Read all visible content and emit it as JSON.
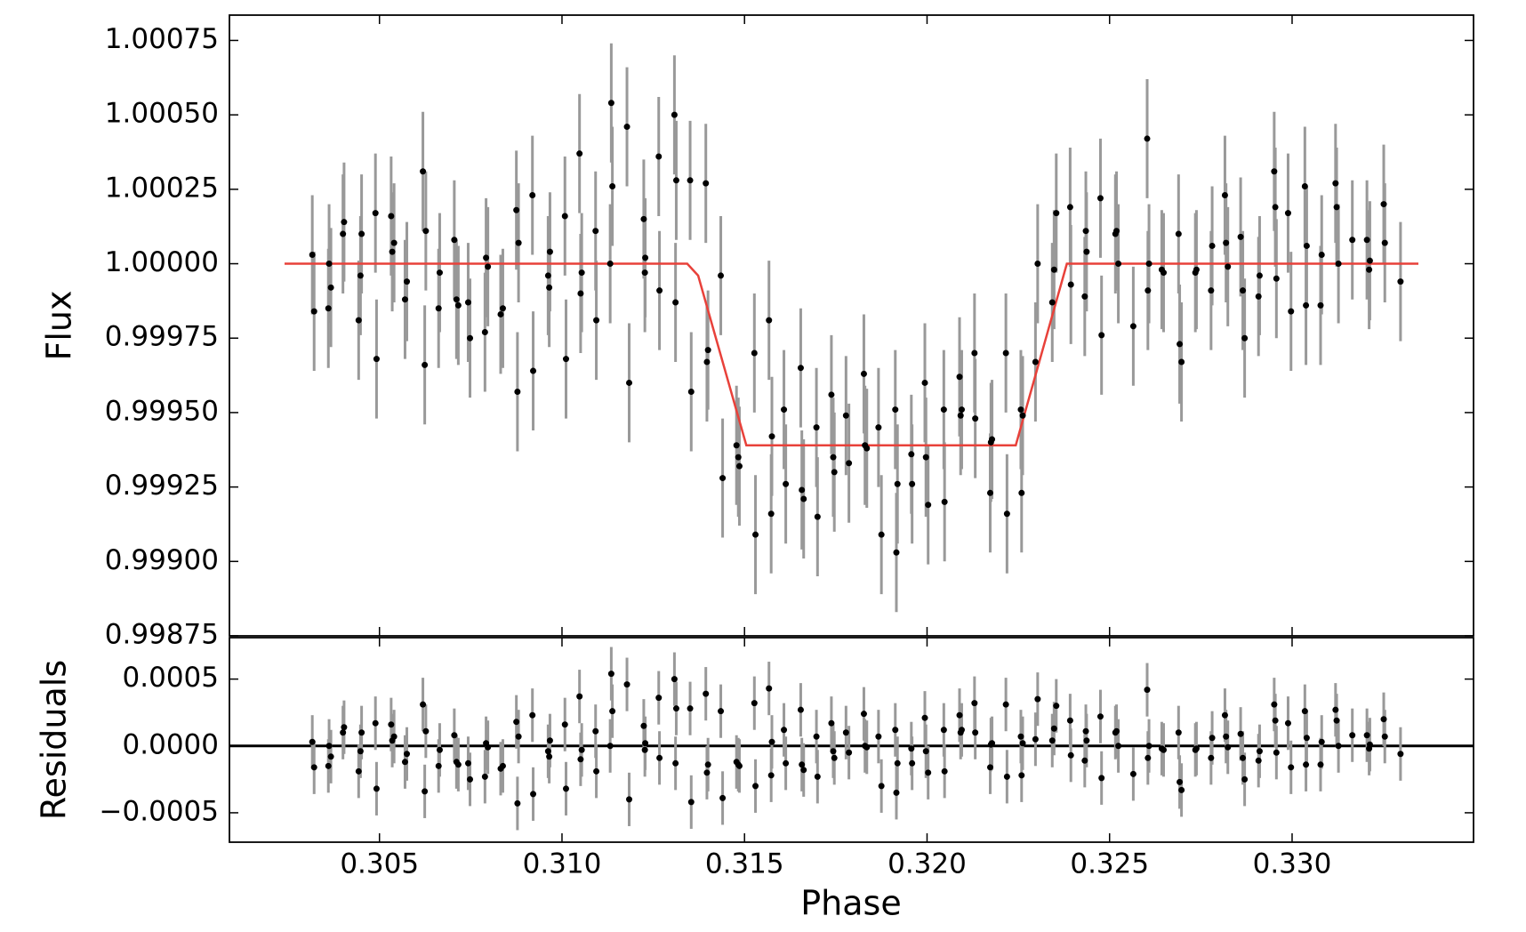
{
  "chart_data": [
    {
      "type": "errorbar",
      "ylabel": "Flux",
      "color": "#000000",
      "error_color": "#999999",
      "yerr": 0.0002,
      "x": [
        0.30316,
        0.30321,
        0.30362,
        0.30367,
        0.3036,
        0.304,
        0.30403,
        0.30443,
        0.30448,
        0.30451,
        0.30489,
        0.30492,
        0.30532,
        0.30535,
        0.3054,
        0.3057,
        0.30575,
        0.30619,
        0.30624,
        0.30627,
        0.30662,
        0.30665,
        0.30705,
        0.30711,
        0.30716,
        0.30743,
        0.30748,
        0.30789,
        0.30792,
        0.30797,
        0.30832,
        0.30838,
        0.30875,
        0.30878,
        0.30881,
        0.30919,
        0.30921,
        0.30962,
        0.30965,
        0.30967,
        0.31008,
        0.31011,
        0.31048,
        0.31051,
        0.31054,
        0.31092,
        0.31094,
        0.31135,
        0.31138,
        0.31132,
        0.31178,
        0.31184,
        0.31224,
        0.31227,
        0.31228,
        0.31265,
        0.31267,
        0.31308,
        0.31313,
        0.31311,
        0.31351,
        0.31394,
        0.31354,
        0.31397,
        0.314,
        0.31435,
        0.3144,
        0.31478,
        0.31486,
        0.31483,
        0.31527,
        0.3153,
        0.31567,
        0.31573,
        0.31575,
        0.31608,
        0.31613,
        0.31654,
        0.31657,
        0.31662,
        0.31697,
        0.317,
        0.31738,
        0.31743,
        0.31746,
        0.31778,
        0.31786,
        0.31827,
        0.3183,
        0.31835,
        0.31867,
        0.31875,
        0.31913,
        0.31916,
        0.31919,
        0.31957,
        0.31959,
        0.31994,
        0.31997,
        0.32003,
        0.32046,
        0.32048,
        0.32089,
        0.32092,
        0.32095,
        0.3213,
        0.32132,
        0.32173,
        0.32175,
        0.32178,
        0.32216,
        0.32219,
        0.32257,
        0.32259,
        0.32262,
        0.32297,
        0.32303,
        0.32343,
        0.32348,
        0.32354,
        0.32392,
        0.32394,
        0.32432,
        0.32435,
        0.32437,
        0.32475,
        0.32478,
        0.32516,
        0.32519,
        0.32524,
        0.32565,
        0.32603,
        0.32605,
        0.32608,
        0.32643,
        0.32648,
        0.32689,
        0.32692,
        0.32697,
        0.32735,
        0.32738,
        0.32778,
        0.32781,
        0.32816,
        0.32819,
        0.32824,
        0.32859,
        0.32865,
        0.3287,
        0.32908,
        0.32911,
        0.32951,
        0.32954,
        0.32957,
        0.32989,
        0.32997,
        0.33035,
        0.33038,
        0.3304,
        0.33078,
        0.33081,
        0.33119,
        0.33122,
        0.33127,
        0.33165,
        0.33205,
        0.33211,
        0.33213,
        0.33251,
        0.33254,
        0.33297
      ],
      "values": [
        1.00003,
        0.99984,
        1.0,
        0.99992,
        0.99985,
        1.0001,
        1.00014,
        0.99981,
        0.99996,
        1.0001,
        1.00017,
        0.99968,
        1.00016,
        1.00004,
        1.00007,
        0.99988,
        0.99994,
        1.00031,
        0.99966,
        1.00011,
        0.99985,
        0.99997,
        1.00008,
        0.99988,
        0.99986,
        0.99987,
        0.99975,
        0.99977,
        1.00002,
        0.99999,
        0.99983,
        0.99985,
        1.00018,
        0.99957,
        1.00007,
        1.00023,
        0.99964,
        0.99996,
        0.99992,
        1.00004,
        1.00016,
        0.99968,
        1.00037,
        0.9999,
        0.99997,
        1.00011,
        0.99981,
        1.00054,
        1.00026,
        1.0,
        1.00046,
        0.9996,
        1.00015,
        0.99997,
        1.00002,
        1.00036,
        0.99991,
        1.0005,
        1.00028,
        0.99987,
        1.00028,
        1.00027,
        0.99957,
        0.99967,
        0.99971,
        0.99996,
        0.99928,
        0.99939,
        0.99932,
        0.99935,
        0.9997,
        0.99909,
        0.99981,
        0.99916,
        0.99942,
        0.99951,
        0.99926,
        0.99965,
        0.99924,
        0.99921,
        0.99945,
        0.99915,
        0.99956,
        0.99935,
        0.9993,
        0.99949,
        0.99933,
        0.99963,
        0.99939,
        0.99938,
        0.99945,
        0.99909,
        0.99951,
        0.99903,
        0.99926,
        0.99936,
        0.99926,
        0.9996,
        0.99935,
        0.99919,
        0.99951,
        0.9992,
        0.99962,
        0.99949,
        0.99951,
        0.9997,
        0.99948,
        0.99923,
        0.9994,
        0.99941,
        0.9997,
        0.99916,
        0.99951,
        0.99923,
        0.99949,
        0.99967,
        1.0,
        0.99987,
        0.99998,
        1.00017,
        1.00019,
        0.99993,
        0.99989,
        1.00011,
        1.00004,
        1.00022,
        0.99976,
        1.0001,
        1.00011,
        1.0,
        0.99979,
        1.00042,
        0.99991,
        1.0,
        0.99998,
        0.99997,
        1.0001,
        0.99973,
        0.99967,
        0.99997,
        0.99998,
        0.99991,
        1.00006,
        1.00023,
        1.00007,
        0.99999,
        1.00009,
        0.99991,
        0.99975,
        0.99989,
        0.99996,
        1.00031,
        1.00019,
        0.99995,
        1.00017,
        0.99984,
        1.00026,
        0.99986,
        1.00006,
        0.99986,
        1.00003,
        1.00027,
        1.00019,
        1.0,
        1.00008,
        1.00008,
        0.99998,
        1.00001,
        1.0002,
        1.00007,
        0.99994
      ],
      "model": {
        "color": "#e8413a",
        "x": [
          0.3024,
          0.31343,
          0.31373,
          0.31505,
          0.32243,
          0.32383,
          0.33346
        ],
        "values": [
          1.0,
          1.0,
          0.99996,
          0.99939,
          0.99939,
          1.0,
          1.0
        ]
      },
      "ylim": [
        0.99875,
        1.000835
      ],
      "yticks": [
        {
          "value": 0.99875,
          "label": "0.99875"
        },
        {
          "value": 0.999,
          "label": "0.99900"
        },
        {
          "value": 0.99925,
          "label": "0.99925"
        },
        {
          "value": 0.9995,
          "label": "0.99950"
        },
        {
          "value": 0.99975,
          "label": "0.99975"
        },
        {
          "value": 1.0,
          "label": "1.00000"
        },
        {
          "value": 1.00025,
          "label": "1.00025"
        },
        {
          "value": 1.0005,
          "label": "1.00050"
        },
        {
          "value": 1.00075,
          "label": "1.00075"
        }
      ]
    },
    {
      "type": "errorbar",
      "xlabel": "Phase",
      "ylabel": "Residuals",
      "color": "#000000",
      "error_color": "#999999",
      "yerr": 0.0002,
      "values": [
        3e-05,
        -0.00016,
        0,
        -8e-05,
        -0.00015,
        0.0001,
        0.00014,
        -0.00019,
        -4e-05,
        0.0001,
        0.00017,
        -0.00032,
        0.00016,
        4e-05,
        7e-05,
        -0.00012,
        -6e-05,
        0.00031,
        -0.00034,
        0.00011,
        -0.00015,
        -3e-05,
        8e-05,
        -0.00012,
        -0.00014,
        -0.00013,
        -0.00025,
        -0.00023,
        2e-05,
        -1e-05,
        -0.00017,
        -0.00015,
        0.00018,
        -0.00043,
        7e-05,
        0.00023,
        -0.00036,
        -4e-05,
        -8e-05,
        4e-05,
        0.00016,
        -0.00032,
        0.00037,
        -0.0001,
        -3e-05,
        0.00011,
        -0.00019,
        0.00054,
        0.00026,
        0,
        0.00046,
        -0.0004,
        0.00015,
        -3e-05,
        2e-05,
        0.00036,
        -9e-05,
        0.0005,
        0.00028,
        -0.00013,
        0.00028,
        0.00039,
        -0.00042,
        -0.0002,
        -0.00014,
        0.00026,
        -0.00039,
        -0.00012,
        -0.00015,
        -0.00014,
        0.00032,
        -0.0003,
        0.00043,
        -0.00022,
        3e-05,
        0.00012,
        -0.00013,
        0.00027,
        -0.00014,
        -0.00018,
        7e-05,
        -0.00023,
        0.00017,
        -4e-05,
        -9e-05,
        0.0001,
        -5e-05,
        0.00024,
        0,
        -1e-05,
        7e-05,
        -0.0003,
        0.00012,
        -0.00035,
        -0.00013,
        -2e-05,
        -0.00013,
        0.00021,
        -4e-05,
        -0.0002,
        0.00012,
        -0.00019,
        0.00023,
        0.0001,
        0.00012,
        0.00032,
        0.0001,
        -0.00016,
        1e-05,
        2e-05,
        0.00031,
        -0.00023,
        7e-05,
        -0.00022,
        2e-05,
        5e-05,
        0.00035,
        4e-05,
        0.00013,
        0.0003,
        0.00019,
        -7e-05,
        -0.00011,
        0.00011,
        4e-05,
        0.00022,
        -0.00024,
        0.0001,
        0.00011,
        0,
        -0.00021,
        0.00042,
        -9e-05,
        0,
        -2e-05,
        -3e-05,
        0.0001,
        -0.00027,
        -0.00033,
        -3e-05,
        -2e-05,
        -9e-05,
        6e-05,
        0.00023,
        7e-05,
        -1e-05,
        9e-05,
        -9e-05,
        -0.00025,
        -0.00011,
        -4e-05,
        0.00031,
        0.00019,
        -5e-05,
        0.00017,
        -0.00016,
        0.00026,
        -0.00014,
        6e-05,
        -0.00014,
        3e-05,
        0.00027,
        0.00019,
        0,
        8e-05,
        8e-05,
        -2e-05,
        1e-05,
        0.0002,
        7e-05,
        -6e-05
      ],
      "hline": 0,
      "hline_color": "#000000",
      "xlim": [
        0.30089,
        0.33497
      ],
      "xticks": [
        0.305,
        {
          "value": 0.31,
          "label": "0.310"
        },
        0.315,
        {
          "value": 0.32,
          "label": "0.320"
        },
        0.325,
        {
          "value": 0.33,
          "label": "0.330"
        }
      ],
      "ylim": [
        -0.00072,
        0.00081
      ],
      "yticks": [
        {
          "value": -0.0005,
          "label": "−0.0005"
        },
        {
          "value": 0,
          "label": "0.0000"
        },
        0.0005
      ]
    }
  ]
}
